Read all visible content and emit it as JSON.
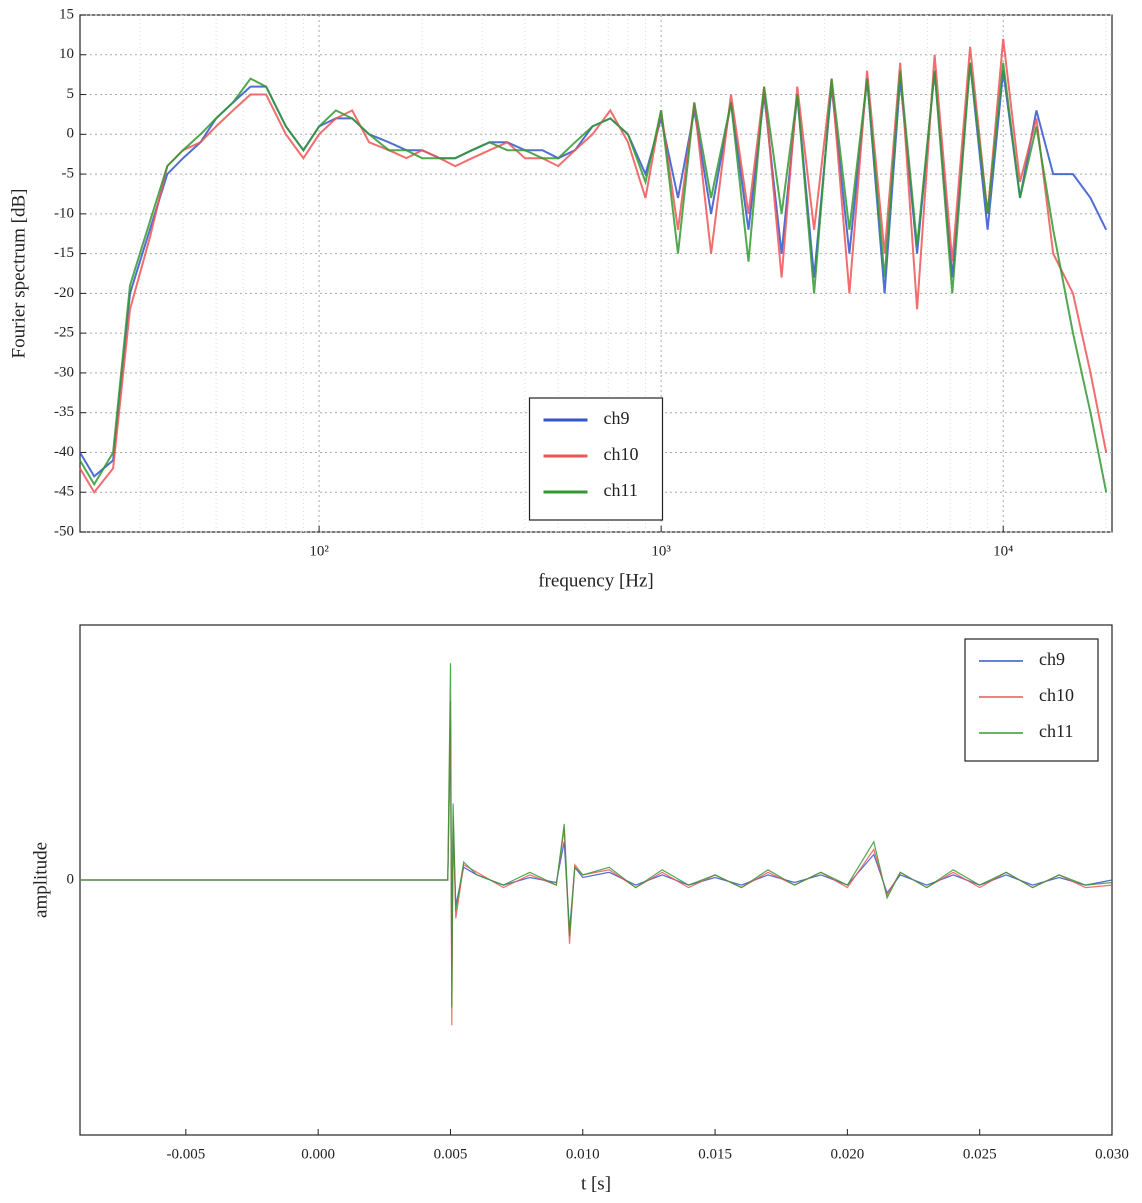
{
  "chart_data": [
    {
      "type": "line",
      "xlabel": "frequency [Hz]",
      "ylabel": "Fourier spectrum [dB]",
      "xscale": "log",
      "grid": true,
      "legend": "lower center",
      "xlim": [
        20,
        20800
      ],
      "ylim": [
        -50,
        15
      ],
      "xticks": [
        {
          "value": 100,
          "label": "10²"
        },
        {
          "value": 1000,
          "label": "10³"
        },
        {
          "value": 10000,
          "label": "10⁴"
        }
      ],
      "yticks": [
        -50,
        -45,
        -40,
        -35,
        -30,
        -25,
        -20,
        -15,
        -10,
        -5,
        0,
        5,
        10,
        15
      ],
      "x": [
        20,
        22,
        25,
        28,
        32,
        36,
        40,
        45,
        50,
        56,
        63,
        70,
        80,
        90,
        100,
        112,
        125,
        140,
        160,
        180,
        200,
        225,
        250,
        280,
        315,
        355,
        400,
        450,
        500,
        560,
        630,
        710,
        800,
        900,
        1000,
        1120,
        1250,
        1400,
        1600,
        1800,
        2000,
        2250,
        2500,
        2800,
        3150,
        3550,
        4000,
        4500,
        5000,
        5600,
        6300,
        7100,
        8000,
        9000,
        10000,
        11200,
        12500,
        14000,
        16000,
        18000,
        20000
      ],
      "series": [
        {
          "name": "ch9",
          "color": "#3355cc",
          "values": [
            -40,
            -43,
            -41,
            -20,
            -12,
            -5,
            -3,
            -1,
            2,
            4,
            6,
            6,
            1,
            -2,
            1,
            2,
            2,
            0,
            -1,
            -2,
            -2,
            -3,
            -3,
            -2,
            -1,
            -1,
            -2,
            -2,
            -3,
            -2,
            1,
            2,
            0,
            -5,
            2,
            -8,
            3,
            -10,
            4,
            -12,
            5,
            -15,
            5,
            -18,
            6,
            -15,
            7,
            -20,
            7,
            -15,
            8,
            -18,
            9,
            -12,
            8,
            -8,
            3,
            -5,
            -5,
            -8,
            -12
          ]
        },
        {
          "name": "ch10",
          "color": "#ee5555",
          "values": [
            -42,
            -45,
            -42,
            -22,
            -13,
            -4,
            -2,
            -1,
            1,
            3,
            5,
            5,
            0,
            -3,
            0,
            2,
            3,
            -1,
            -2,
            -3,
            -2,
            -3,
            -4,
            -3,
            -2,
            -1,
            -3,
            -3,
            -4,
            -2,
            0,
            3,
            -1,
            -8,
            3,
            -12,
            4,
            -15,
            5,
            -10,
            6,
            -18,
            6,
            -12,
            7,
            -20,
            8,
            -15,
            9,
            -22,
            10,
            -16,
            11,
            -10,
            12,
            -6,
            2,
            -15,
            -20,
            -30,
            -40
          ]
        },
        {
          "name": "ch11",
          "color": "#339933",
          "values": [
            -41,
            -44,
            -40,
            -19,
            -11,
            -4,
            -2,
            0,
            2,
            4,
            7,
            6,
            1,
            -2,
            1,
            3,
            2,
            0,
            -2,
            -2,
            -3,
            -3,
            -3,
            -2,
            -1,
            -2,
            -2,
            -3,
            -3,
            -1,
            1,
            2,
            0,
            -6,
            3,
            -15,
            4,
            -8,
            4,
            -16,
            6,
            -10,
            5,
            -20,
            7,
            -12,
            7,
            -18,
            8,
            -14,
            8,
            -20,
            9,
            -10,
            9,
            -8,
            1,
            -12,
            -25,
            -35,
            -45
          ]
        }
      ]
    },
    {
      "type": "line",
      "xlabel": "t [s]",
      "ylabel": "amplitude",
      "grid": false,
      "legend": "upper right",
      "xlim": [
        -0.009,
        0.03
      ],
      "ylim": [
        -1,
        1
      ],
      "xticks": [
        {
          "value": -0.005,
          "label": "-0.005"
        },
        {
          "value": 0,
          "label": "0.000"
        },
        {
          "value": 0.005,
          "label": "0.005"
        },
        {
          "value": 0.01,
          "label": "0.010"
        },
        {
          "value": 0.015,
          "label": "0.015"
        },
        {
          "value": 0.02,
          "label": "0.020"
        },
        {
          "value": 0.025,
          "label": "0.025"
        },
        {
          "value": 0.03,
          "label": "0.030"
        }
      ],
      "yticks": [
        0
      ],
      "x": [
        -0.009,
        0,
        0.0049,
        0.005,
        0.00505,
        0.0051,
        0.0052,
        0.0055,
        0.006,
        0.007,
        0.008,
        0.009,
        0.0093,
        0.0095,
        0.0097,
        0.01,
        0.011,
        0.012,
        0.013,
        0.014,
        0.015,
        0.016,
        0.017,
        0.018,
        0.019,
        0.02,
        0.021,
        0.0215,
        0.022,
        0.023,
        0.024,
        0.025,
        0.026,
        0.027,
        0.028,
        0.029,
        0.03
      ],
      "series": [
        {
          "name": "ch9",
          "color": "#3355cc",
          "values": [
            0,
            0,
            0,
            0.6,
            -0.4,
            0.2,
            -0.1,
            0.05,
            0.02,
            -0.02,
            0.01,
            -0.01,
            0.15,
            -0.2,
            0.05,
            0.01,
            0.03,
            -0.02,
            0.02,
            -0.02,
            0.01,
            -0.02,
            0.02,
            -0.01,
            0.02,
            -0.02,
            0.1,
            -0.05,
            0.02,
            -0.02,
            0.02,
            -0.02,
            0.02,
            -0.02,
            0.01,
            -0.02,
            0
          ]
        },
        {
          "name": "ch10",
          "color": "#ee5555",
          "values": [
            0,
            0,
            0,
            0.7,
            -0.57,
            0.25,
            -0.15,
            0.06,
            0.03,
            -0.03,
            0.02,
            -0.02,
            0.2,
            -0.25,
            0.06,
            0.02,
            0.04,
            -0.03,
            0.03,
            -0.03,
            0.02,
            -0.03,
            0.03,
            -0.02,
            0.03,
            -0.03,
            0.12,
            -0.06,
            0.03,
            -0.03,
            0.03,
            -0.03,
            0.03,
            -0.03,
            0.02,
            -0.03,
            -0.02
          ]
        },
        {
          "name": "ch11",
          "color": "#339933",
          "values": [
            0,
            0,
            0,
            0.85,
            -0.5,
            0.3,
            -0.12,
            0.07,
            0.02,
            -0.02,
            0.03,
            -0.02,
            0.22,
            -0.22,
            0.05,
            0.02,
            0.05,
            -0.03,
            0.04,
            -0.02,
            0.02,
            -0.03,
            0.04,
            -0.02,
            0.03,
            -0.02,
            0.15,
            -0.07,
            0.03,
            -0.03,
            0.04,
            -0.02,
            0.03,
            -0.03,
            0.02,
            -0.02,
            -0.01
          ]
        }
      ]
    }
  ]
}
